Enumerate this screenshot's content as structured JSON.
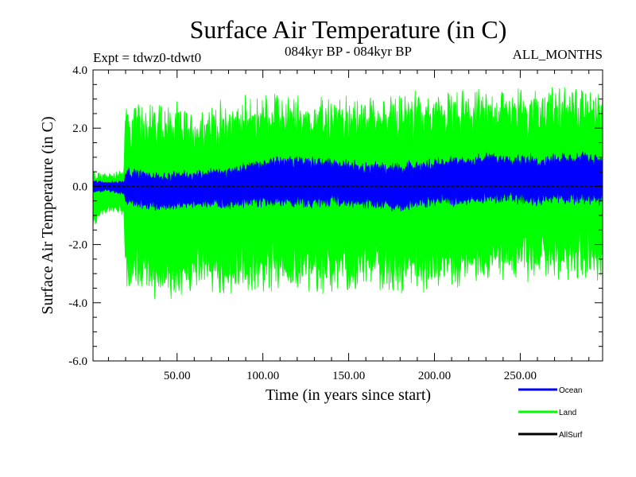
{
  "chart_data": {
    "type": "line",
    "title": "Surface Air Temperature (in C)",
    "subtitle_left": "Expt = tdwz0-tdwt0",
    "subtitle_center": "084kyr BP - 084kyr BP",
    "subtitle_right": "ALL_MONTHS",
    "xlabel": "Time (in years since start)",
    "ylabel": "Surface Air Temperature (in C)",
    "xlim": [
      1,
      298
    ],
    "ylim": [
      -6.0,
      4.0
    ],
    "x_ticks": [
      50,
      100,
      150,
      200,
      250
    ],
    "x_tick_labels": [
      "50.00",
      "100.00",
      "150.00",
      "200.00",
      "250.00"
    ],
    "y_ticks": [
      -6,
      -4,
      -2,
      0,
      2,
      4
    ],
    "y_tick_labels": [
      "-6.0",
      "-4.0",
      "-2.0",
      "0.0",
      "2.0",
      "4.0"
    ],
    "legend_position": "bottom-right below plot",
    "series": [
      {
        "name": "Land",
        "color": "#00ff00",
        "envelope": {
          "x": [
            1,
            10,
            19,
            20,
            40,
            60,
            80,
            100,
            120,
            140,
            160,
            180,
            200,
            220,
            240,
            260,
            280,
            298
          ],
          "upper": [
            0.5,
            0.4,
            0.6,
            2.5,
            2.6,
            2.3,
            2.6,
            2.8,
            2.8,
            2.7,
            2.7,
            2.8,
            2.9,
            2.9,
            3.0,
            3.0,
            3.1,
            3.1
          ],
          "lower": [
            -1.3,
            -0.8,
            -0.9,
            -3.2,
            -3.5,
            -3.3,
            -3.4,
            -3.3,
            -3.2,
            -3.3,
            -3.2,
            -3.3,
            -3.1,
            -3.0,
            -2.9,
            -2.9,
            -2.8,
            -2.8
          ]
        }
      },
      {
        "name": "Ocean",
        "color": "#0000ff",
        "envelope": {
          "x": [
            1,
            10,
            19,
            20,
            40,
            60,
            80,
            100,
            120,
            140,
            160,
            180,
            200,
            220,
            240,
            260,
            280,
            298
          ],
          "upper": [
            0.2,
            0.15,
            0.2,
            0.6,
            0.4,
            0.5,
            0.6,
            0.9,
            1.0,
            0.9,
            0.8,
            0.7,
            0.9,
            1.0,
            1.1,
            1.0,
            1.1,
            1.1
          ],
          "lower": [
            -0.2,
            -0.15,
            -0.3,
            -0.6,
            -0.8,
            -0.7,
            -0.7,
            -0.6,
            -0.7,
            -0.6,
            -0.7,
            -0.8,
            -0.6,
            -0.6,
            -0.5,
            -0.6,
            -0.5,
            -0.6
          ]
        }
      },
      {
        "name": "AllSurf",
        "color": "#000000",
        "values_constant": 0.0
      }
    ],
    "legend": [
      {
        "label": "Ocean",
        "color": "#0000ff"
      },
      {
        "label": "Land",
        "color": "#00ff00"
      },
      {
        "label": "AllSurf",
        "color": "#000000"
      }
    ]
  }
}
